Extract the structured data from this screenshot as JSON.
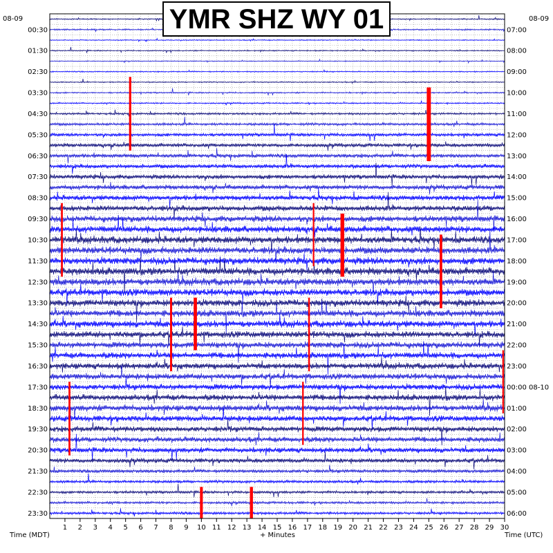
{
  "chart_data": {
    "type": "line",
    "title": "YMR SHZ WY 01",
    "xlabel": "+ Minutes",
    "left_axis_label": "Time (MDT)",
    "right_axis_label": "Time (UTC)",
    "left_date": "08-09",
    "right_date": "08-09",
    "x_range": [
      0,
      30
    ],
    "x_ticks": [
      1,
      2,
      3,
      4,
      5,
      6,
      7,
      8,
      9,
      10,
      11,
      12,
      13,
      14,
      15,
      16,
      17,
      18,
      19,
      20,
      21,
      22,
      23,
      24,
      25,
      26,
      27,
      28,
      29,
      30
    ],
    "row_minutes": 30,
    "row_count": 48,
    "left_tick_labels": [
      "00:30",
      "01:30",
      "02:30",
      "03:30",
      "04:30",
      "05:30",
      "06:30",
      "07:30",
      "08:30",
      "09:30",
      "10:30",
      "11:30",
      "12:30",
      "13:30",
      "14:30",
      "15:30",
      "16:30",
      "17:30",
      "18:30",
      "19:30",
      "20:30",
      "21:30",
      "22:30",
      "23:30"
    ],
    "right_tick_labels": [
      "07:00",
      "08:00",
      "09:00",
      "10:00",
      "11:00",
      "12:00",
      "13:00",
      "14:00",
      "15:00",
      "16:00",
      "17:00",
      "18:00",
      "19:00",
      "20:00",
      "21:00",
      "22:00",
      "23:00",
      "00:00 08-10",
      "01:00",
      "02:00",
      "03:00",
      "04:00",
      "05:00",
      "06:00"
    ],
    "trace_colors": [
      "#0a0a7a",
      "#1a1ad6",
      "#0000ff"
    ],
    "clip_color": "#ff0000",
    "grid": true,
    "row_noise_levels": [
      0.5,
      0.6,
      0.4,
      0.5,
      0.4,
      0.5,
      0.5,
      0.6,
      0.6,
      0.9,
      1.1,
      1.4,
      1.6,
      1.7,
      1.8,
      1.9,
      2.0,
      2.2,
      2.4,
      2.6,
      2.8,
      3.0,
      3.0,
      3.0,
      3.1,
      3.0,
      3.0,
      2.9,
      2.8,
      2.8,
      2.7,
      2.6,
      2.6,
      2.5,
      2.5,
      2.5,
      2.5,
      2.6,
      2.5,
      2.4,
      2.3,
      2.2,
      1.9,
      1.5,
      1.2,
      1.1,
      1.0,
      1.1
    ]
  }
}
